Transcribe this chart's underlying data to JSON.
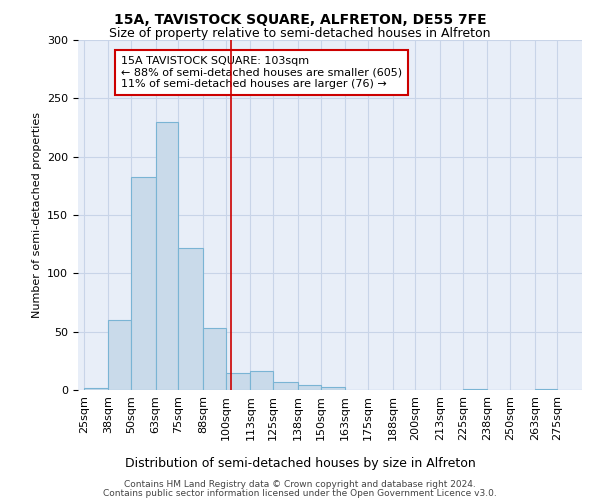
{
  "title": "15A, TAVISTOCK SQUARE, ALFRETON, DE55 7FE",
  "subtitle": "Size of property relative to semi-detached houses in Alfreton",
  "xlabel": "Distribution of semi-detached houses by size in Alfreton",
  "ylabel": "Number of semi-detached properties",
  "footer_line1": "Contains HM Land Registry data © Crown copyright and database right 2024.",
  "footer_line2": "Contains public sector information licensed under the Open Government Licence v3.0.",
  "bin_labels": [
    "25sqm",
    "38sqm",
    "50sqm",
    "63sqm",
    "75sqm",
    "88sqm",
    "100sqm",
    "113sqm",
    "125sqm",
    "138sqm",
    "150sqm",
    "163sqm",
    "175sqm",
    "188sqm",
    "200sqm",
    "213sqm",
    "225sqm",
    "238sqm",
    "250sqm",
    "263sqm",
    "275sqm"
  ],
  "bin_edges": [
    25,
    38,
    50,
    63,
    75,
    88,
    100,
    113,
    125,
    138,
    150,
    163,
    175,
    188,
    200,
    213,
    225,
    238,
    250,
    263,
    275,
    288
  ],
  "values": [
    2,
    60,
    183,
    230,
    122,
    53,
    15,
    16,
    7,
    4,
    3,
    0,
    0,
    0,
    0,
    0,
    1,
    0,
    0,
    1,
    0
  ],
  "bar_color": "#c9daea",
  "bar_edge_color": "#7ab4d4",
  "property_size": 103,
  "red_line_color": "#cc0000",
  "annotation_line1": "15A TAVISTOCK SQUARE: 103sqm",
  "annotation_line2": "← 88% of semi-detached houses are smaller (605)",
  "annotation_line3": "11% of semi-detached houses are larger (76) →",
  "annotation_box_color": "#cc0000",
  "ylim": [
    0,
    300
  ],
  "yticks": [
    0,
    50,
    100,
    150,
    200,
    250,
    300
  ],
  "grid_color": "#c8d4e8",
  "background_color": "#e8eef8",
  "title_fontsize": 10,
  "subtitle_fontsize": 9,
  "ylabel_fontsize": 8,
  "xlabel_fontsize": 9,
  "tick_fontsize": 8,
  "annotation_fontsize": 8,
  "footer_fontsize": 6.5
}
